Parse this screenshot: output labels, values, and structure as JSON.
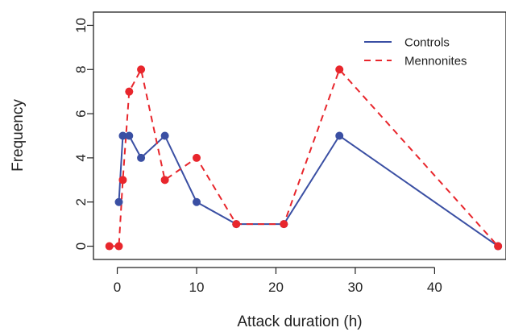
{
  "chart_data": {
    "type": "line",
    "title": "",
    "xlabel": "Attack duration (h)",
    "ylabel": "Frequency",
    "xlim": [
      -3,
      49
    ],
    "ylim": [
      -0.6,
      10.6
    ],
    "x_ticks": [
      0,
      10,
      20,
      30,
      40
    ],
    "y_ticks": [
      0,
      2,
      4,
      6,
      8,
      10
    ],
    "grid": false,
    "legend_position": "top-right",
    "series": [
      {
        "name": "Controls",
        "color": "#3a4fa3",
        "line_style": "solid",
        "points": [
          {
            "x": 0.2,
            "y": 2
          },
          {
            "x": 0.7,
            "y": 5
          },
          {
            "x": 1.5,
            "y": 5
          },
          {
            "x": 3,
            "y": 4
          },
          {
            "x": 6,
            "y": 5
          },
          {
            "x": 10,
            "y": 2
          },
          {
            "x": 15,
            "y": 1
          },
          {
            "x": 21,
            "y": 1
          },
          {
            "x": 28,
            "y": 5
          },
          {
            "x": 48,
            "y": 0
          }
        ]
      },
      {
        "name": "Mennonites",
        "color": "#e8262c",
        "line_style": "dashed",
        "points": [
          {
            "x": -1,
            "y": 0
          },
          {
            "x": 0.2,
            "y": 0
          },
          {
            "x": 0.7,
            "y": 3
          },
          {
            "x": 1.5,
            "y": 7
          },
          {
            "x": 3,
            "y": 8
          },
          {
            "x": 6,
            "y": 3
          },
          {
            "x": 10,
            "y": 4
          },
          {
            "x": 15,
            "y": 1
          },
          {
            "x": 21,
            "y": 1
          },
          {
            "x": 28,
            "y": 8
          },
          {
            "x": 48,
            "y": 0
          }
        ]
      }
    ]
  }
}
